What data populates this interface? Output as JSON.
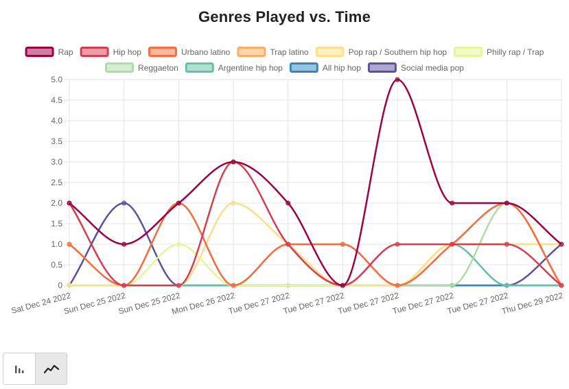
{
  "chart_data": {
    "type": "line",
    "title": "Genres Played vs. Time",
    "xlabel": "",
    "ylabel": "",
    "ylim": [
      0,
      5.0
    ],
    "y_ticks": [
      "0",
      "0.5",
      "1.0",
      "1.5",
      "2.0",
      "2.5",
      "3.0",
      "3.5",
      "4.0",
      "4.5",
      "5.0"
    ],
    "grid": true,
    "legend_position": "top",
    "categories": [
      "Sat Dec 24 2022",
      "Sun Dec 25 2022",
      "Sun Dec 25 2022",
      "Mon Dec 26 2022",
      "Tue Dec 27 2022",
      "Tue Dec 27 2022",
      "Tue Dec 27 2022",
      "Tue Dec 27 2022",
      "Tue Dec 27 2022",
      "Thu Dec 29 2022"
    ],
    "series": [
      {
        "name": "Rap",
        "color": "#9e0142",
        "values": [
          2,
          1,
          2,
          3,
          2,
          0,
          5,
          2,
          2,
          1
        ]
      },
      {
        "name": "Hip hop",
        "color": "#d53e4f",
        "values": [
          2,
          0,
          0,
          3,
          1,
          0,
          1,
          1,
          1,
          0
        ]
      },
      {
        "name": "Urbano latino",
        "color": "#f46d43",
        "values": [
          1,
          0,
          2,
          0,
          1,
          1,
          0,
          1,
          2,
          0
        ]
      },
      {
        "name": "Trap latino",
        "color": "#fdae61",
        "values": [
          1,
          0,
          2,
          0,
          1,
          1,
          0,
          1,
          2,
          0
        ]
      },
      {
        "name": "Pop rap / Southern hip hop",
        "color": "#fee08b",
        "values": [
          0,
          0,
          0,
          2,
          1,
          0,
          0,
          1,
          1,
          1
        ]
      },
      {
        "name": "Philly rap / Trap",
        "color": "#e6f598",
        "values": [
          0,
          0,
          1,
          0,
          0,
          0,
          0,
          1,
          1,
          1
        ]
      },
      {
        "name": "Reggaeton",
        "color": "#abdda4",
        "values": [
          0,
          0,
          0,
          2,
          1,
          0,
          0,
          0,
          2,
          0
        ]
      },
      {
        "name": "Argentine hip hop",
        "color": "#66c2a5",
        "values": [
          0,
          0,
          0,
          0,
          0,
          0,
          0,
          1,
          0,
          0
        ]
      },
      {
        "name": "All hip hop",
        "color": "#3288bd",
        "values": [
          0,
          0,
          0,
          0,
          0,
          0,
          0,
          0,
          0,
          0
        ]
      },
      {
        "name": "Social media pop",
        "color": "#5e4fa2",
        "values": [
          0,
          2,
          0,
          0,
          0,
          0,
          0,
          0,
          0,
          1
        ]
      }
    ]
  },
  "controls": {
    "bar_icon": "bar-chart-icon",
    "line_icon": "line-chart-icon",
    "active": "line"
  }
}
